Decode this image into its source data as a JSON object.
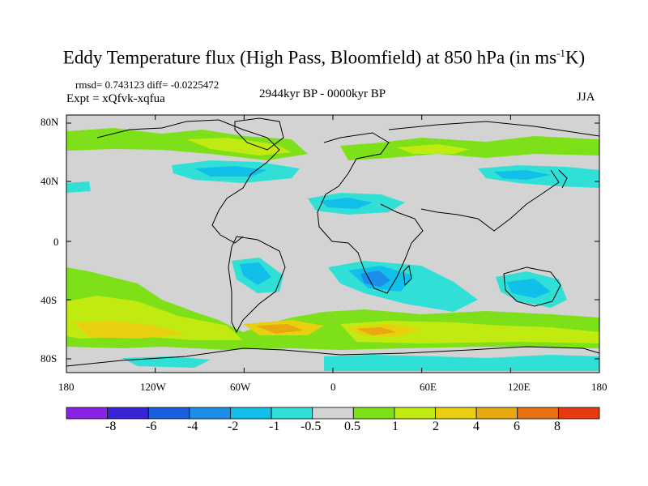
{
  "title": {
    "main": "Eddy Temperature flux (High Pass, Bloomfield) at 850 hPa (in ms",
    "sup": "-1",
    "tail": "K)"
  },
  "stats": "rmsd= 0.743123 diff= -0.0225472",
  "experiment": "Expt = xQfvk-xqfua",
  "period": "2944kyr BP - 0000kyr BP",
  "season": "JJA",
  "axes": {
    "lon_ticks": [
      "180",
      "120W",
      "60W",
      "0",
      "60E",
      "120E",
      "180"
    ],
    "lat_ticks": [
      "80N",
      "40N",
      "0",
      "40S",
      "80S"
    ]
  },
  "colorbar": {
    "colors": [
      "#8b20e6",
      "#3a22d6",
      "#1a5ee0",
      "#1a8ee8",
      "#10c0ea",
      "#30e0d6",
      "#d3d3d3",
      "#7ee018",
      "#c0ea10",
      "#e8d010",
      "#e8a810",
      "#e87010",
      "#e83a10"
    ],
    "labels": [
      "-8",
      "-6",
      "-4",
      "-2",
      "-1",
      "-0.5",
      "0.5",
      "1",
      "2",
      "4",
      "6",
      "8"
    ]
  },
  "map_layers": {
    "ocean_land_background": "#d3d3d3",
    "coastline": "#000000"
  }
}
